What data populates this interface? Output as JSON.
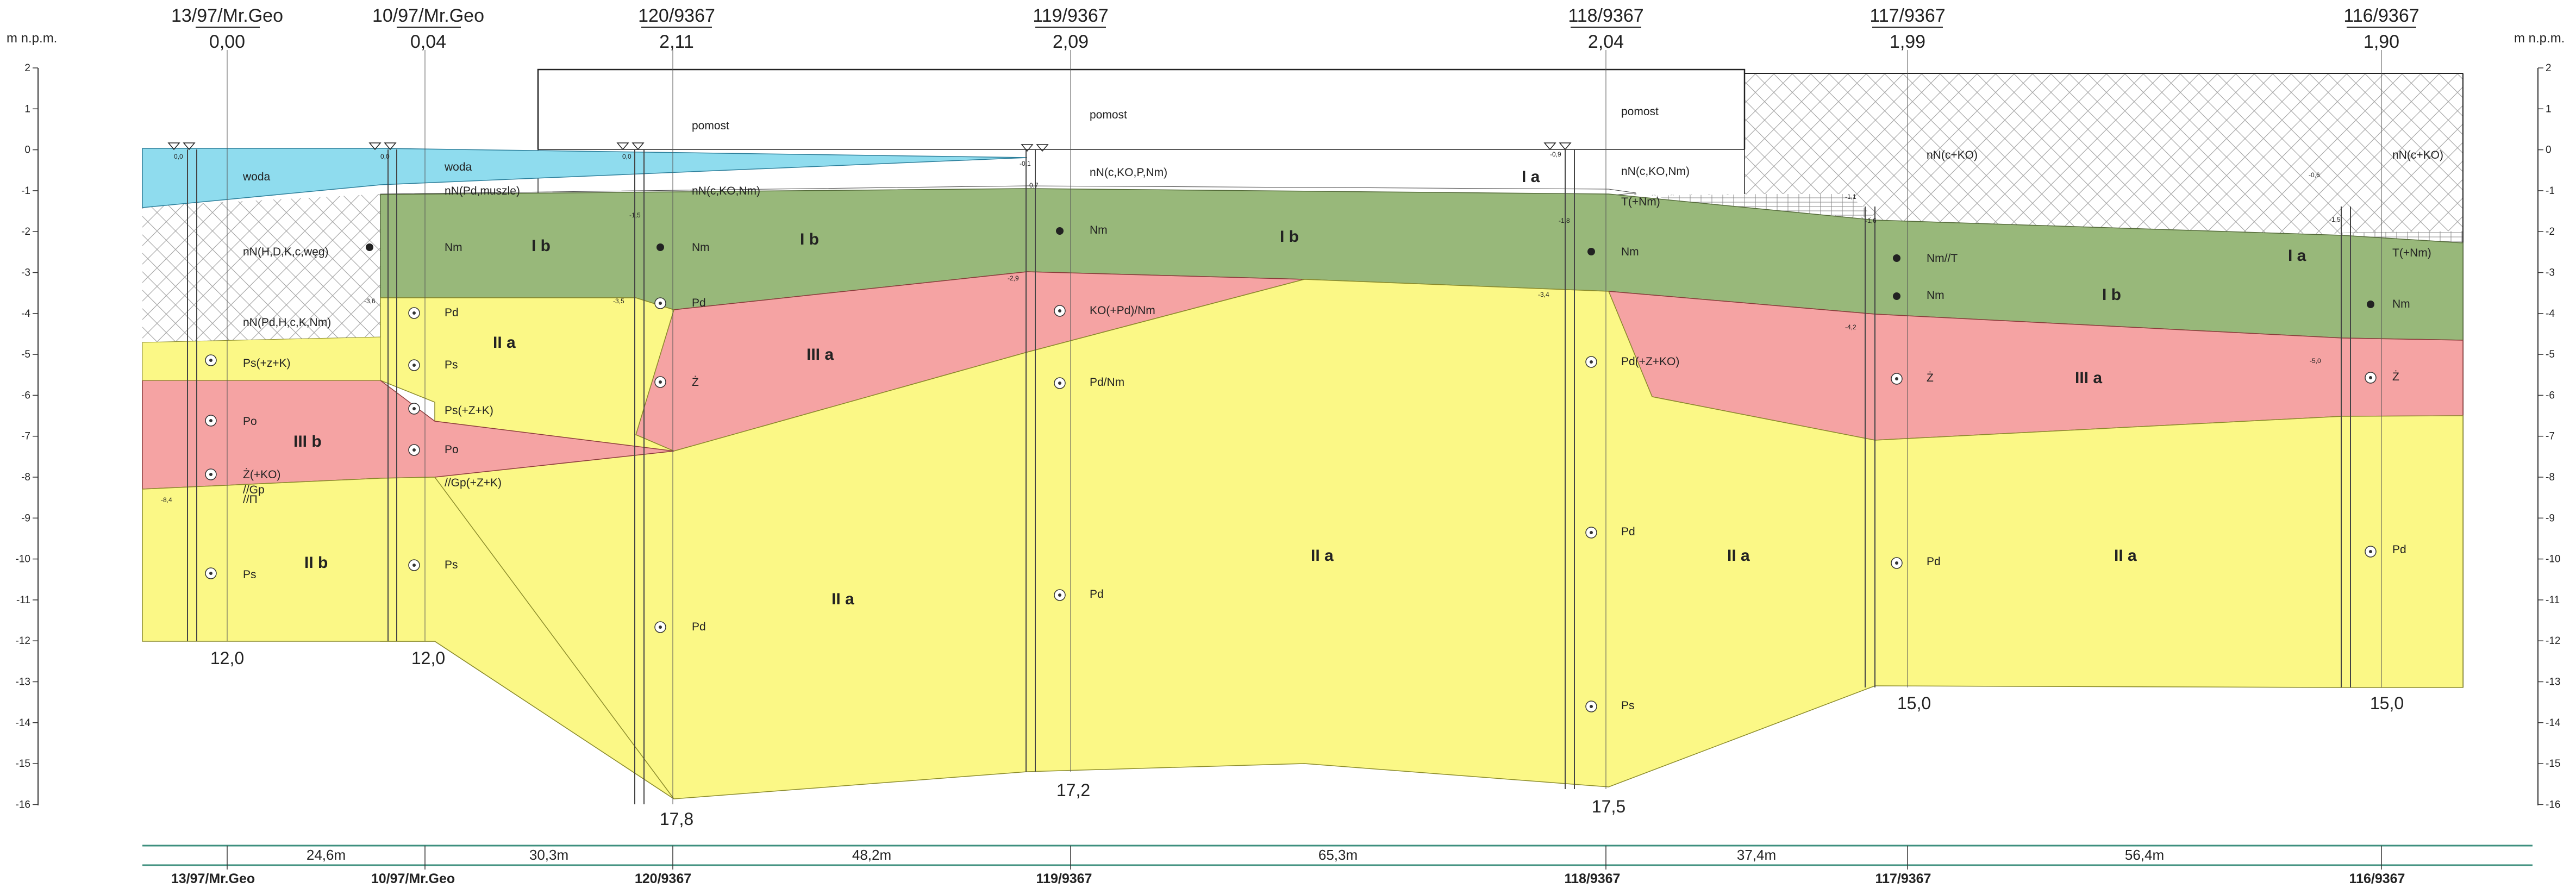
{
  "axis": {
    "unit": "m n.p.m.",
    "ticks": [
      "2",
      "1",
      "0",
      "-1",
      "-2",
      "-3",
      "-4",
      "-5",
      "-6",
      "-7",
      "-8",
      "-9",
      "-10",
      "-11",
      "-12",
      "-13",
      "-14",
      "-15",
      "-16"
    ]
  },
  "boreholes": [
    {
      "name": "13/97/Mr.Geo",
      "elevation": "0,00",
      "depth": "12,0"
    },
    {
      "name": "10/97/Mr.Geo",
      "elevation": "0,04",
      "depth": "12,0"
    },
    {
      "name": "120/9367",
      "elevation": "2,11",
      "depth": "17,8"
    },
    {
      "name": "119/9367",
      "elevation": "2,09",
      "depth": "17,2"
    },
    {
      "name": "118/9367",
      "elevation": "2,04",
      "depth": "17,5"
    },
    {
      "name": "117/9367",
      "elevation": "1,99",
      "depth": "15,0"
    },
    {
      "name": "116/9367",
      "elevation": "1,90",
      "depth": "15,0"
    }
  ],
  "distances": [
    "24,6m",
    "30,3m",
    "48,2m",
    "65,3m",
    "37,4m",
    "56,4m"
  ],
  "layers": [
    "I a",
    "I b",
    "I b",
    "I b",
    "I b",
    "I a",
    "II a",
    "II a",
    "II a",
    "II a",
    "II a",
    "II b",
    "III a",
    "III a",
    "III b"
  ],
  "soil_labels": [
    "woda",
    "woda",
    "nN(Pd,muszle)",
    "nN(c,KO,Nm)",
    "nN(H,D,K,c,węg)",
    "nN(Pd,H,c,K,Nm)",
    "Nm",
    "Nm",
    "Pd",
    "Ps",
    "Ps(+z+K)",
    "Ps(+Z+K)",
    "Po",
    "Po",
    "Ż(+KO)",
    "//Gp(+Z+K)",
    "//Gp",
    "//Π",
    "Ps",
    "Ps",
    "Pd",
    "Ż",
    "Pd",
    "pomost",
    "pomost",
    "pomost",
    "nN(c,KO,P,Nm)",
    "Nm",
    "KO(+Pd)/Nm",
    "Pd/Nm",
    "Pd",
    "nN(c,KO,Nm)",
    "T(+Nm)",
    "Nm",
    "Pd(+Z+KO)",
    "Pd",
    "Ps",
    "nN(c+KO)",
    "Nm//T",
    "Nm",
    "Ż",
    "Pd",
    "nN(c+KO)",
    "T(+Nm)",
    "Nm",
    "Ż",
    "Pd"
  ],
  "water_marks": [
    "0,0",
    "0,0",
    "0,0",
    "-0,1",
    "-0,7",
    "-0,9",
    "-1,5",
    "-1,8",
    "-1,1",
    "-1,6",
    "-1,5",
    "-0,6",
    "-3,6",
    "-3,5",
    "-2,9",
    "-3,4",
    "-4,2",
    "-5,0",
    "-8,4"
  ],
  "colors": {
    "water": "#8fdcee",
    "fill": "#ffffff",
    "layer_Ib": "#98b87a",
    "layer_IIa": "#fbf886",
    "layer_IIIa": "#f5a3a3",
    "layer_IIIb": "#f5a3a3",
    "layer_IIb": "#fbf886",
    "ruler": "#3d8f7e"
  }
}
